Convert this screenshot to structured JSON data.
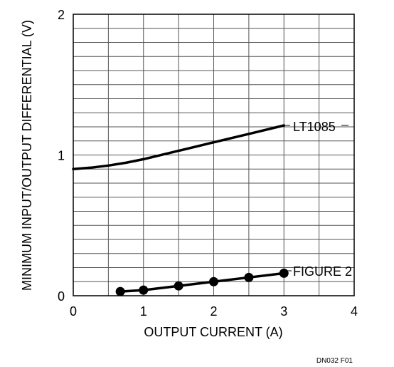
{
  "chart_data": {
    "type": "line",
    "xlabel": "OUTPUT CURRENT (A)",
    "ylabel": "MINIMUM INPUT/OUTPUT DIFFERENTIAL (V)",
    "xlim": [
      0,
      4
    ],
    "ylim": [
      0,
      2
    ],
    "x_ticks": [
      "0",
      "1",
      "2",
      "3",
      "4"
    ],
    "y_ticks": [
      "0",
      "1",
      "2"
    ],
    "grid": true,
    "series": [
      {
        "name": "LT1085",
        "color": "#000000",
        "markers": false,
        "x": [
          0,
          0.25,
          0.5,
          0.75,
          1.0,
          1.5,
          2.0,
          2.5,
          3.0
        ],
        "y": [
          0.9,
          0.91,
          0.925,
          0.945,
          0.97,
          1.03,
          1.09,
          1.15,
          1.21
        ]
      },
      {
        "name": "FIGURE 2",
        "color": "#000000",
        "markers": true,
        "x": [
          0.67,
          1.0,
          1.5,
          2.0,
          2.5,
          3.0
        ],
        "y": [
          0.03,
          0.04,
          0.07,
          0.1,
          0.13,
          0.16
        ]
      }
    ],
    "footnote": "DN032 F01"
  }
}
